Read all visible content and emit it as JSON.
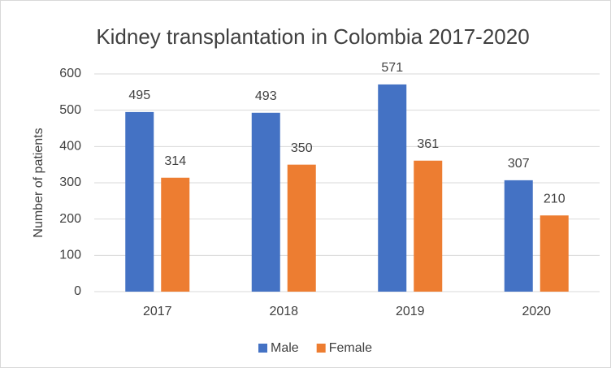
{
  "chart_data": {
    "type": "bar",
    "title": "Kidney transplantation in Colombia 2017-2020",
    "y_label": "Number of patients",
    "categories": [
      "2017",
      "2018",
      "2019",
      "2020"
    ],
    "series": [
      {
        "name": "Male",
        "color": "#4472c4",
        "values": [
          495,
          493,
          571,
          307
        ]
      },
      {
        "name": "Female",
        "color": "#ed7d31",
        "values": [
          314,
          350,
          361,
          210
        ]
      }
    ],
    "ylim": [
      0,
      600
    ],
    "yticks": [
      0,
      100,
      200,
      300,
      400,
      500,
      600
    ],
    "grid": true,
    "legend": "bottom"
  }
}
